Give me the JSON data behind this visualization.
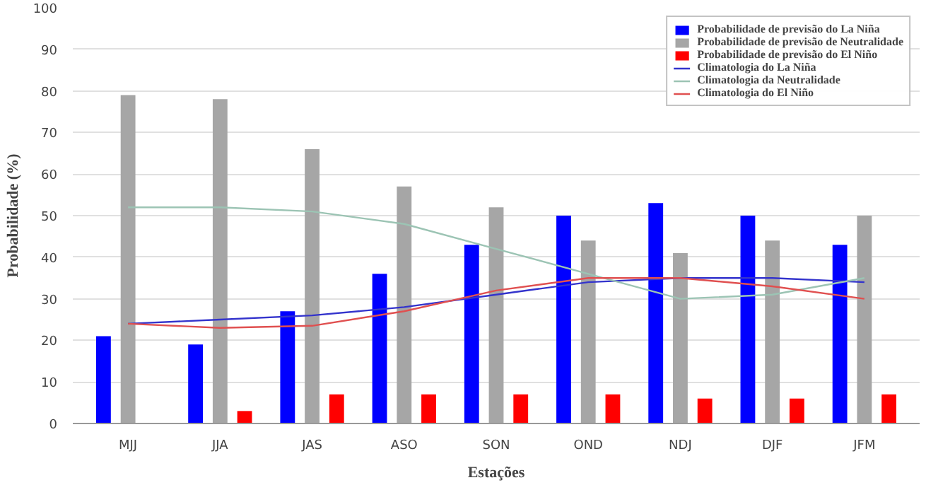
{
  "chart_data": {
    "type": "bar",
    "xlabel": "Estações",
    "ylabel": "Probabilidade (%)",
    "categories": [
      "MJJ",
      "JJA",
      "JAS",
      "ASO",
      "SON",
      "OND",
      "NDJ",
      "DJF",
      "JFM"
    ],
    "ylim": [
      0,
      100
    ],
    "yticks": [
      0,
      10,
      20,
      30,
      40,
      50,
      60,
      70,
      80,
      90,
      100
    ],
    "grid": "y",
    "legend": "top right",
    "series": [
      {
        "name": "Probabilidade de previsão do La Niña",
        "color": "#0000ff",
        "values": [
          21,
          19,
          27,
          36,
          43,
          50,
          53,
          50,
          43
        ]
      },
      {
        "name": "Probabilidade de previsão de Neutralidade",
        "color": "#a6a6a6",
        "values": [
          79,
          78,
          66,
          57,
          52,
          44,
          41,
          44,
          50
        ]
      },
      {
        "name": "Probabilidade de previsão do El Niño",
        "color": "#ff0000",
        "values": [
          0,
          3,
          7,
          7,
          7,
          7,
          6,
          6,
          7
        ]
      },
      {
        "name": "Climatologia do La Niña",
        "type": "line",
        "color": "#3333cc",
        "values": [
          24,
          25,
          26,
          28,
          31,
          34,
          35,
          35,
          34
        ]
      },
      {
        "name": "Climatologia da Neutralidade",
        "type": "line",
        "color": "#9cc4b4",
        "values": [
          52,
          52,
          51,
          48,
          42,
          36,
          30,
          31,
          35
        ]
      },
      {
        "name": "Climatologia do El Niño",
        "type": "line",
        "color": "#e05050",
        "values": [
          24,
          23,
          23.5,
          27,
          32,
          35,
          35,
          33,
          30
        ]
      }
    ]
  }
}
